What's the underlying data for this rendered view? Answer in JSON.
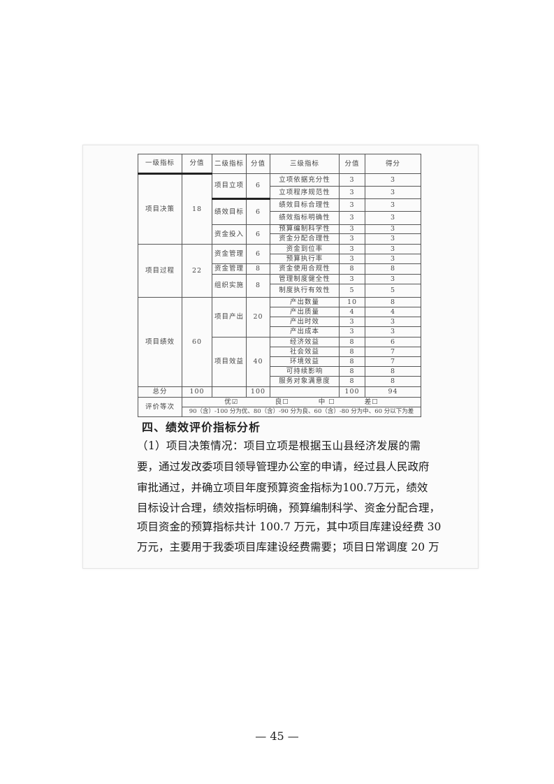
{
  "table": {
    "headers": [
      "一级指标",
      "分值",
      "二级指标",
      "分值",
      "三级指标",
      "分值",
      "得分"
    ],
    "groups": [
      {
        "l1": "项目决策",
        "l1_score": "18",
        "subs": [
          {
            "l2": "项目立项",
            "l2_score": "6",
            "items": [
              [
                "立项依据充分性",
                "3",
                "3"
              ],
              [
                "立项程序规范性",
                "3",
                "3"
              ]
            ]
          },
          {
            "l2": "绩效目标",
            "l2_score": "6",
            "items": [
              [
                "绩效目标合理性",
                "3",
                "3"
              ],
              [
                "绩效指标明确性",
                "3",
                "3"
              ]
            ]
          },
          {
            "l2": "资金投入",
            "l2_score": "6",
            "items": [
              [
                "预算编制科学性",
                "3",
                "3"
              ],
              [
                "资金分配合理性",
                "3",
                "3"
              ]
            ]
          }
        ]
      },
      {
        "l1": "项目过程",
        "l1_score": "22",
        "subs": [
          {
            "l2": "资金管理",
            "l2_score": "6",
            "items": [
              [
                "资金到位率",
                "3",
                "3"
              ],
              [
                "预算执行率",
                "3",
                "3"
              ]
            ]
          },
          {
            "l2": "资金管理",
            "l2_score": "8",
            "items": [
              [
                "资金使用合规性",
                "8",
                "8"
              ]
            ]
          },
          {
            "l2": "组织实施",
            "l2_score": "8",
            "items": [
              [
                "管理制度健全性",
                "3",
                "3"
              ],
              [
                "制度执行有效性",
                "5",
                "5"
              ]
            ]
          }
        ]
      },
      {
        "l1": "项目绩效",
        "l1_score": "60",
        "subs": [
          {
            "l2": "项目产出",
            "l2_score": "20",
            "items": [
              [
                "产出数量",
                "10",
                "8"
              ],
              [
                "产出质量",
                "4",
                "4"
              ],
              [
                "产出时效",
                "3",
                "3"
              ],
              [
                "产出成本",
                "3",
                "3"
              ]
            ]
          },
          {
            "l2": "项目效益",
            "l2_score": "40",
            "items": [
              [
                "经济效益",
                "8",
                "6"
              ],
              [
                "社会效益",
                "8",
                "7"
              ],
              [
                "环境效益",
                "8",
                "7"
              ],
              [
                "可持续影响",
                "8",
                "8"
              ],
              [
                "服务对象满意度",
                "8",
                "8"
              ]
            ]
          }
        ]
      }
    ],
    "total": {
      "label": "总分",
      "l1_score": "100",
      "l2_score": "100",
      "l3_score": "100",
      "score": "94"
    },
    "grade": {
      "label": "评价等次",
      "options": "优☑　　　　　良☐　　　　中 ☐　　　　差☐",
      "note": "90（含）-100 分为优、80（含）-90 分为良、60（含）-80 分为中、60 分以下为差"
    }
  },
  "section_heading": "四、绩效评价指标分析",
  "paragraph_lines": [
    "（1）项目决策情况：项目立项是根据玉山县经济发展的需",
    "要，通过发改委项目领导管理办公室的申请，经过县人民政府",
    "审批通过，并确立项目年度预算资金指标为100.7万元，绩效",
    "目标设计合理，绩效指标明确，预算编制科学、资金分配合理，",
    "项目资金的预算指标共计 100.7 万元，其中项目库建设经费 30",
    "万元，主要用于我委项目库建设经费需要；项目日常调度 20 万"
  ],
  "page_number": "— 45 —"
}
